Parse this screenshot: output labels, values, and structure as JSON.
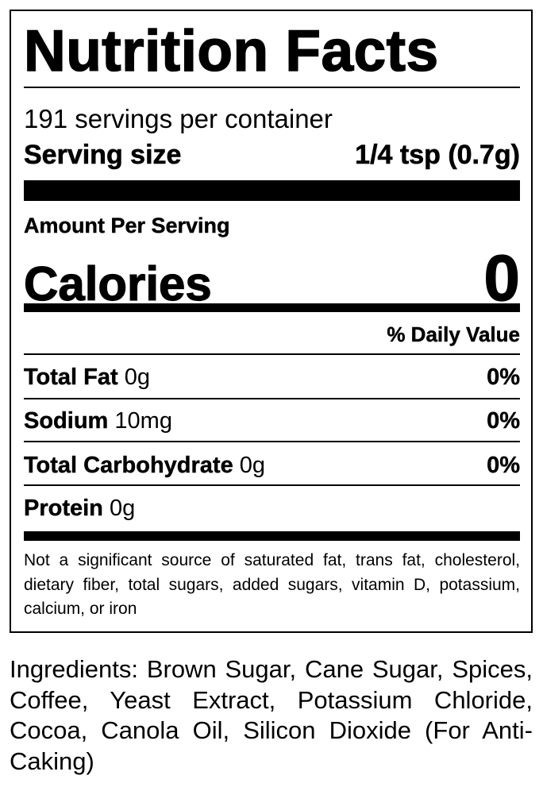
{
  "title": "Nutrition Facts",
  "servings_per_container": "191 servings per container",
  "serving_size": {
    "label": "Serving size",
    "value": "1/4 tsp (0.7g)"
  },
  "amount_per_serving": "Amount Per Serving",
  "calories": {
    "label": "Calories",
    "value": "0"
  },
  "daily_value_header": "% Daily Value",
  "nutrients": [
    {
      "name": "Total Fat",
      "amount": "0g",
      "dv": "0%"
    },
    {
      "name": "Sodium",
      "amount": "10mg",
      "dv": "0%"
    },
    {
      "name": "Total Carbohydrate",
      "amount": "0g",
      "dv": "0%"
    },
    {
      "name": "Protein",
      "amount": "0g",
      "dv": ""
    }
  ],
  "footnote": "Not a significant source of saturated fat, trans fat, cholesterol, dietary fiber, total sugars, added sugars, vitamin D, potassium, calcium, or iron",
  "ingredients": "Ingredients: Brown Sugar, Cane Sugar, Spices, Coffee, Yeast Extract, Potassium Chloride, Cocoa, Canola Oil, Silicon Dioxide (For Anti-Caking)"
}
